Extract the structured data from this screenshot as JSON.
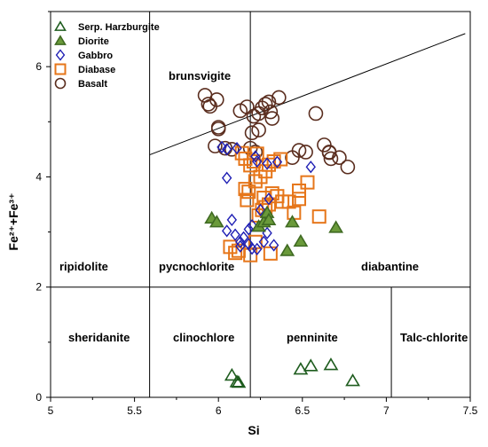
{
  "chart_data": {
    "type": "scatter",
    "xlabel": "Si",
    "ylabel": "Fe²⁺+Fe³⁺",
    "xlim": [
      5,
      7.5
    ],
    "ylim": [
      0,
      7
    ],
    "x_ticks": [
      "5",
      "5.5",
      "6",
      "6.5",
      "7",
      "7.5"
    ],
    "y_ticks": [
      "0",
      "2",
      "4",
      "6"
    ],
    "legend_position": "top-left",
    "region_labels": [
      {
        "id": "brunsvigite",
        "text": "brunsvigite"
      },
      {
        "id": "ripidolite",
        "text": "ripidolite"
      },
      {
        "id": "pycnochlorite",
        "text": "pycnochlorite"
      },
      {
        "id": "diabantine",
        "text": "diabantine"
      },
      {
        "id": "sheridanite",
        "text": "sheridanite"
      },
      {
        "id": "clinochlore",
        "text": "clinochlore"
      },
      {
        "id": "penninite",
        "text": "penninite"
      },
      {
        "id": "talc-chlorite",
        "text": "Talc-chlorite"
      }
    ],
    "boundaries": {
      "vertical_full": [
        5.59,
        6.19
      ],
      "horizontal_y": 2.0,
      "vertical_lower": 7.03,
      "diagonal": [
        [
          5.59,
          4.4
        ],
        [
          7.47,
          6.6
        ]
      ]
    },
    "series": [
      {
        "name": "Serp. Harzburgite",
        "marker": "triangle-open",
        "color": "#1e5c1e",
        "points": [
          [
            6.08,
            0.4
          ],
          [
            6.11,
            0.28
          ],
          [
            6.12,
            0.27
          ],
          [
            6.49,
            0.51
          ],
          [
            6.55,
            0.57
          ],
          [
            6.67,
            0.59
          ],
          [
            6.8,
            0.3
          ]
        ]
      },
      {
        "name": "Diorite",
        "marker": "triangle-filled",
        "color": "#6a9a3a",
        "points": [
          [
            5.96,
            3.25
          ],
          [
            5.99,
            3.18
          ],
          [
            6.24,
            3.1
          ],
          [
            6.27,
            3.18
          ],
          [
            6.29,
            3.35
          ],
          [
            6.3,
            3.22
          ],
          [
            6.44,
            3.18
          ],
          [
            6.49,
            2.83
          ],
          [
            6.41,
            2.66
          ],
          [
            6.7,
            3.08
          ]
        ]
      },
      {
        "name": "Gabbro",
        "marker": "diamond-open",
        "color": "#1f1fb4",
        "points": [
          [
            6.02,
            4.54
          ],
          [
            6.05,
            4.5
          ],
          [
            6.11,
            4.52
          ],
          [
            6.22,
            4.37
          ],
          [
            6.23,
            4.28
          ],
          [
            6.29,
            4.24
          ],
          [
            6.35,
            4.27
          ],
          [
            6.55,
            4.18
          ],
          [
            6.05,
            3.98
          ],
          [
            6.08,
            3.22
          ],
          [
            6.05,
            3.02
          ],
          [
            6.13,
            2.82
          ],
          [
            6.15,
            2.9
          ],
          [
            6.18,
            3.05
          ],
          [
            6.13,
            2.74
          ],
          [
            6.18,
            2.78
          ],
          [
            6.23,
            2.69
          ],
          [
            6.27,
            2.82
          ],
          [
            6.33,
            2.76
          ],
          [
            6.29,
            2.98
          ],
          [
            6.2,
            3.12
          ],
          [
            6.25,
            3.4
          ],
          [
            6.3,
            3.6
          ],
          [
            6.2,
            2.7
          ],
          [
            6.1,
            2.95
          ]
        ]
      },
      {
        "name": "Diabase",
        "marker": "square-open",
        "color": "#e6761a",
        "points": [
          [
            6.07,
            2.73
          ],
          [
            6.1,
            2.62
          ],
          [
            6.12,
            2.66
          ],
          [
            6.19,
            2.58
          ],
          [
            6.22,
            2.82
          ],
          [
            6.31,
            2.61
          ],
          [
            6.26,
            3.4
          ],
          [
            6.3,
            3.5
          ],
          [
            6.27,
            3.62
          ],
          [
            6.32,
            3.7
          ],
          [
            6.35,
            3.65
          ],
          [
            6.42,
            3.55
          ],
          [
            6.45,
            3.35
          ],
          [
            6.48,
            3.6
          ],
          [
            6.48,
            3.75
          ],
          [
            6.53,
            3.9
          ],
          [
            6.6,
            3.28
          ],
          [
            6.17,
            3.58
          ],
          [
            6.18,
            3.73
          ],
          [
            6.16,
            3.78
          ],
          [
            6.22,
            3.92
          ],
          [
            6.25,
            4.0
          ],
          [
            6.28,
            4.1
          ],
          [
            6.3,
            4.22
          ],
          [
            6.33,
            4.28
          ],
          [
            6.37,
            4.32
          ],
          [
            6.21,
            4.28
          ],
          [
            6.23,
            4.42
          ],
          [
            6.14,
            4.43
          ],
          [
            6.16,
            4.33
          ],
          [
            6.19,
            4.21
          ],
          [
            6.24,
            3.3
          ],
          [
            6.28,
            3.45
          ],
          [
            6.38,
            3.55
          ]
        ]
      },
      {
        "name": "Basalt",
        "marker": "circle-open",
        "color": "#5a2d1e",
        "points": [
          [
            5.92,
            5.48
          ],
          [
            5.94,
            5.32
          ],
          [
            5.95,
            5.28
          ],
          [
            5.99,
            5.4
          ],
          [
            6.0,
            4.9
          ],
          [
            6.0,
            4.87
          ],
          [
            5.98,
            4.56
          ],
          [
            6.04,
            4.52
          ],
          [
            6.08,
            4.5
          ],
          [
            6.13,
            5.2
          ],
          [
            6.17,
            5.27
          ],
          [
            6.21,
            5.1
          ],
          [
            6.26,
            5.25
          ],
          [
            6.28,
            5.32
          ],
          [
            6.3,
            5.36
          ],
          [
            6.31,
            5.18
          ],
          [
            6.32,
            5.06
          ],
          [
            6.36,
            5.44
          ],
          [
            6.24,
            5.15
          ],
          [
            6.24,
            4.85
          ],
          [
            6.2,
            4.8
          ],
          [
            6.22,
            4.45
          ],
          [
            6.19,
            4.52
          ],
          [
            6.52,
            4.45
          ],
          [
            6.58,
            5.15
          ],
          [
            6.63,
            4.58
          ],
          [
            6.66,
            4.44
          ],
          [
            6.67,
            4.33
          ],
          [
            6.72,
            4.35
          ],
          [
            6.77,
            4.18
          ],
          [
            6.44,
            4.35
          ],
          [
            6.48,
            4.48
          ],
          [
            6.66,
            4.45
          ]
        ]
      }
    ]
  }
}
